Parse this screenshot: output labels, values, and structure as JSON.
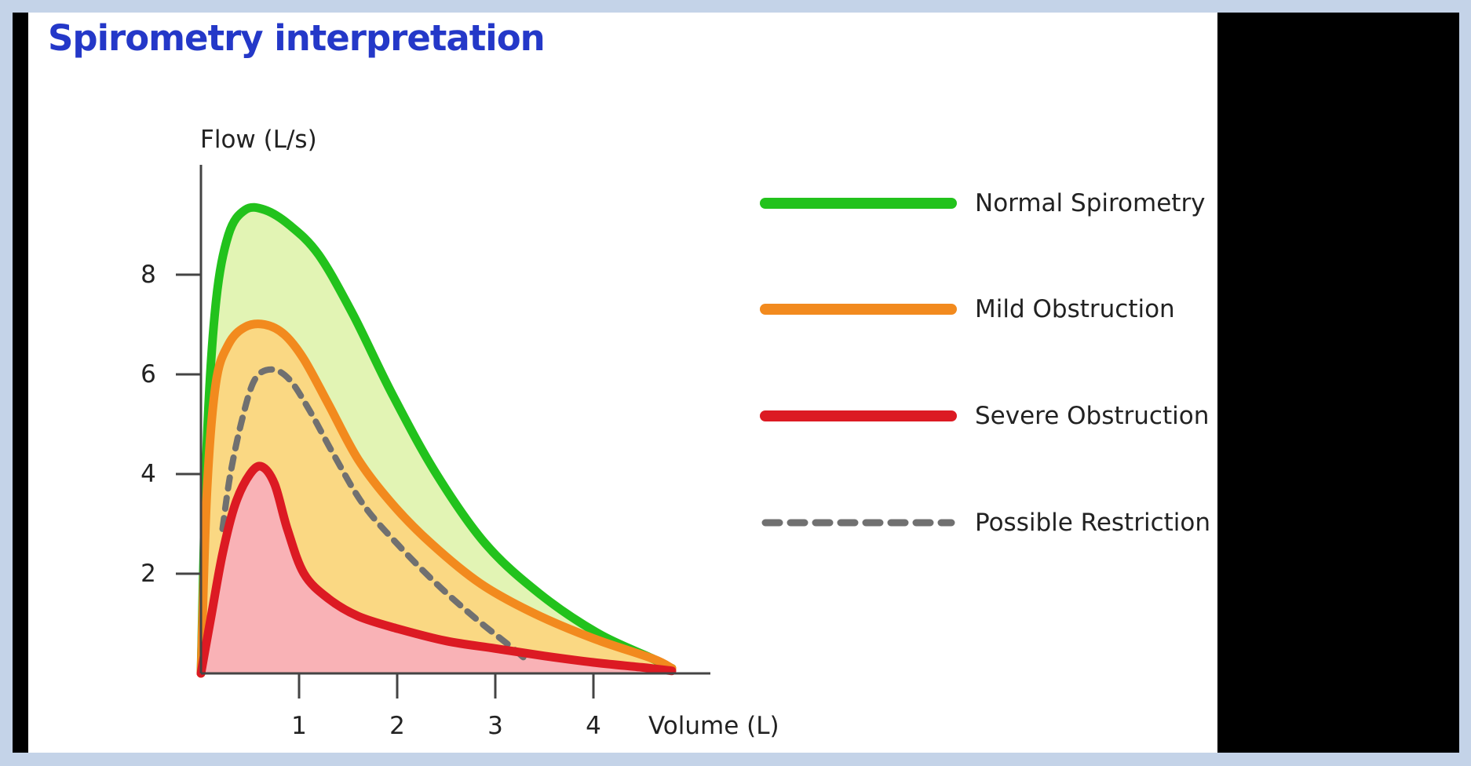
{
  "page": {
    "title": "Spirometry interpretation",
    "frame_color": "#c4d3e8",
    "side_panel_color": "#000000",
    "title_color": "#2438c8"
  },
  "chart_data": {
    "type": "line",
    "title": "Spirometry interpretation",
    "xlabel": "Volume (L)",
    "ylabel": "Flow (L/s)",
    "xlim": [
      0,
      5.2
    ],
    "ylim": [
      0,
      10.2
    ],
    "xticks": [
      1,
      2,
      3,
      4
    ],
    "yticks": [
      2,
      4,
      6,
      8
    ],
    "grid": false,
    "legend_position": "right",
    "series": [
      {
        "name": "Normal Spirometry",
        "color": "#22c21c",
        "fill": "#e2f4b4",
        "dash": false,
        "x": [
          0,
          0.06,
          0.15,
          0.28,
          0.45,
          0.65,
          0.9,
          1.2,
          1.55,
          1.95,
          2.4,
          2.9,
          3.45,
          4.05,
          4.6,
          4.8
        ],
        "y": [
          0,
          4.6,
          7.4,
          8.8,
          9.3,
          9.3,
          9.0,
          8.4,
          7.2,
          5.6,
          4.0,
          2.6,
          1.6,
          0.8,
          0.3,
          0.1
        ]
      },
      {
        "name": "Mild Obstruction",
        "color": "#f28a1e",
        "fill": "#fad883",
        "dash": false,
        "x": [
          0,
          0.06,
          0.15,
          0.28,
          0.45,
          0.65,
          0.85,
          1.05,
          1.3,
          1.6,
          1.95,
          2.35,
          2.85,
          3.4,
          4.0,
          4.6,
          4.8
        ],
        "y": [
          0,
          3.6,
          5.8,
          6.6,
          6.95,
          7.0,
          6.8,
          6.3,
          5.4,
          4.3,
          3.4,
          2.6,
          1.8,
          1.2,
          0.7,
          0.3,
          0.1
        ]
      },
      {
        "name": "Severe Obstruction",
        "color": "#dc1a23",
        "fill": "#f9b2b6",
        "dash": false,
        "x": [
          0,
          0.1,
          0.22,
          0.35,
          0.5,
          0.62,
          0.75,
          0.88,
          1.05,
          1.3,
          1.6,
          2.0,
          2.5,
          3.0,
          3.5,
          4.0,
          4.5,
          4.8
        ],
        "y": [
          0,
          1.1,
          2.4,
          3.4,
          4.0,
          4.15,
          3.8,
          2.9,
          2.0,
          1.5,
          1.15,
          0.9,
          0.65,
          0.5,
          0.35,
          0.22,
          0.12,
          0.05
        ]
      },
      {
        "name": "Possible Restriction",
        "color": "#707070",
        "fill": "none",
        "dash": true,
        "x": [
          0.22,
          0.3,
          0.42,
          0.55,
          0.72,
          0.9,
          1.1,
          1.35,
          1.65,
          2.0,
          2.4,
          2.8,
          3.15,
          3.3
        ],
        "y": [
          2.9,
          4.0,
          5.1,
          5.9,
          6.1,
          5.9,
          5.3,
          4.4,
          3.4,
          2.6,
          1.8,
          1.1,
          0.55,
          0.3
        ]
      }
    ]
  }
}
